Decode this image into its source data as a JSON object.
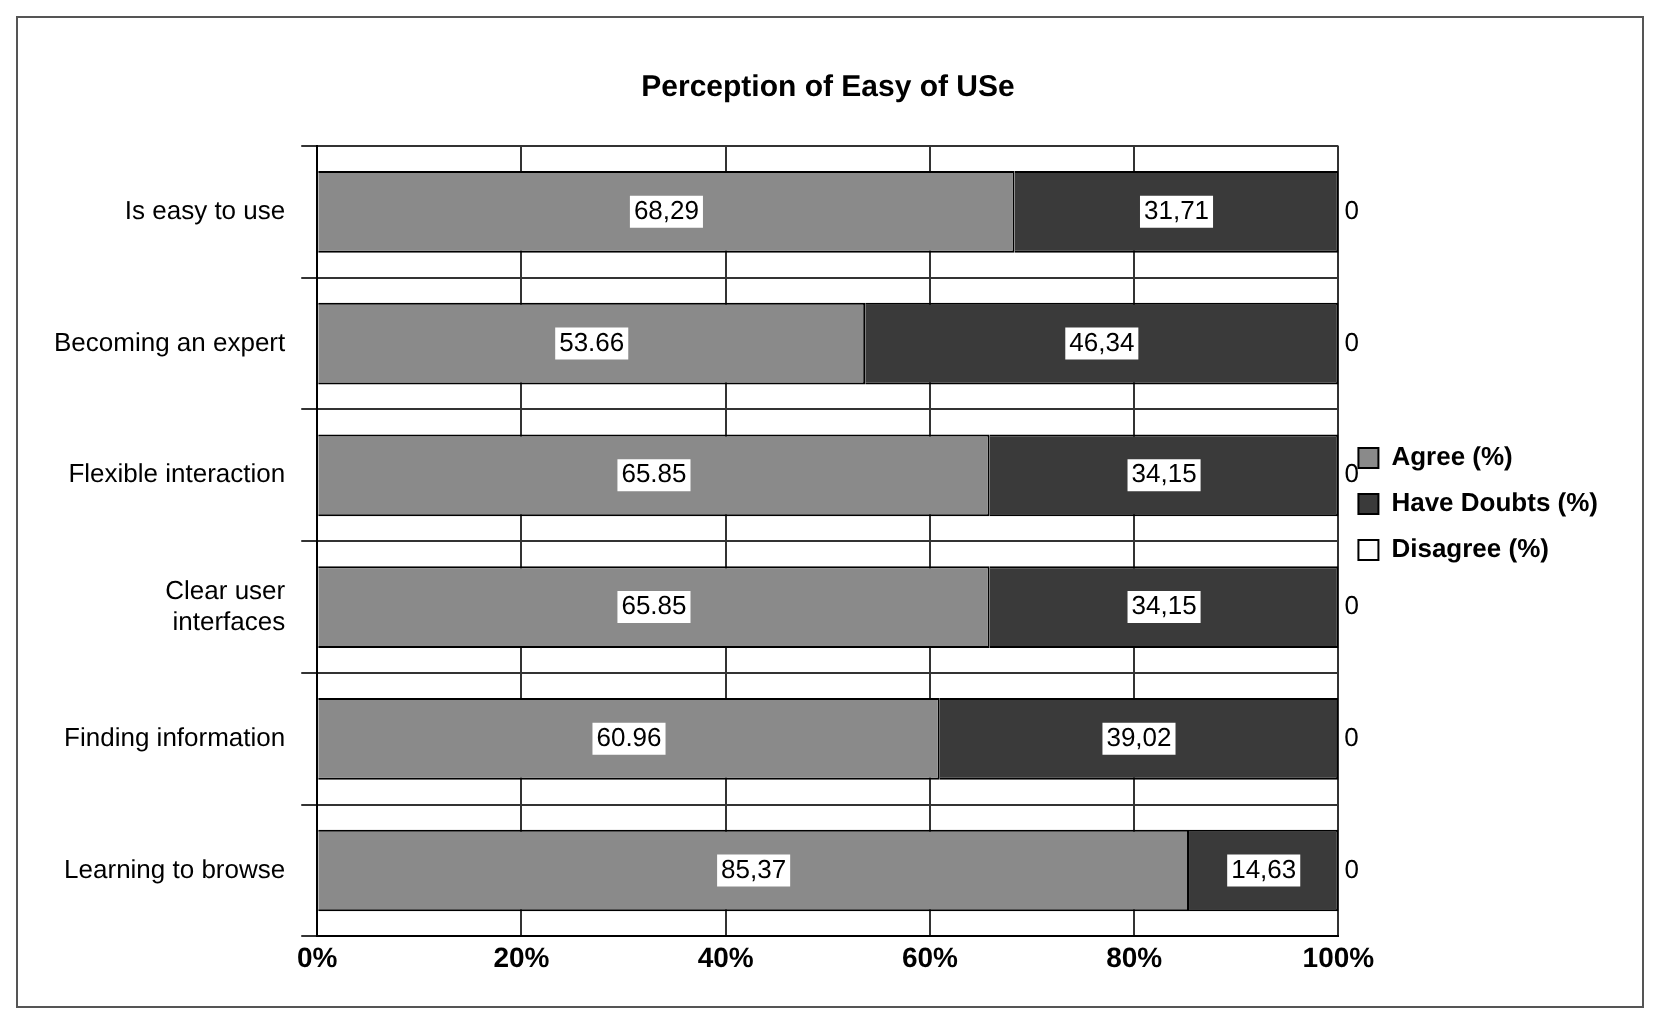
{
  "chart_data": {
    "type": "bar",
    "orientation": "horizontal",
    "stacked": true,
    "title": "Perception of Easy of USe",
    "categories": [
      "Is easy to use",
      "Becoming an expert",
      "Flexible interaction",
      "Clear user interfaces",
      "Finding information",
      "Learning to browse"
    ],
    "series": [
      {
        "name": "Agree (%)",
        "color": "#8a8a8a",
        "values": [
          68.29,
          53.66,
          65.85,
          65.85,
          60.96,
          85.37
        ],
        "value_labels": [
          "68,29",
          "53.66",
          "65.85",
          "65.85",
          "60.96",
          "85,37"
        ]
      },
      {
        "name": "Have Doubts (%)",
        "color": "#3a3a3a",
        "values": [
          31.71,
          46.34,
          34.15,
          34.15,
          39.02,
          14.63
        ],
        "value_labels": [
          "31,71",
          "46,34",
          "34,15",
          "34,15",
          "39,02",
          "14,63"
        ]
      },
      {
        "name": "Disagree (%)",
        "color": "#ffffff",
        "values": [
          0,
          0,
          0,
          0,
          0,
          0
        ],
        "value_labels": [
          "0",
          "0",
          "0",
          "0",
          "0",
          "0"
        ]
      }
    ],
    "xlim": [
      0,
      100
    ],
    "xticks": [
      {
        "value": 0,
        "label": "0%"
      },
      {
        "value": 20,
        "label": "20%"
      },
      {
        "value": 40,
        "label": "40%"
      },
      {
        "value": 60,
        "label": "60%"
      },
      {
        "value": 80,
        "label": "80%"
      },
      {
        "value": 100,
        "label": "100%"
      }
    ],
    "grid": true,
    "legend": "right"
  }
}
